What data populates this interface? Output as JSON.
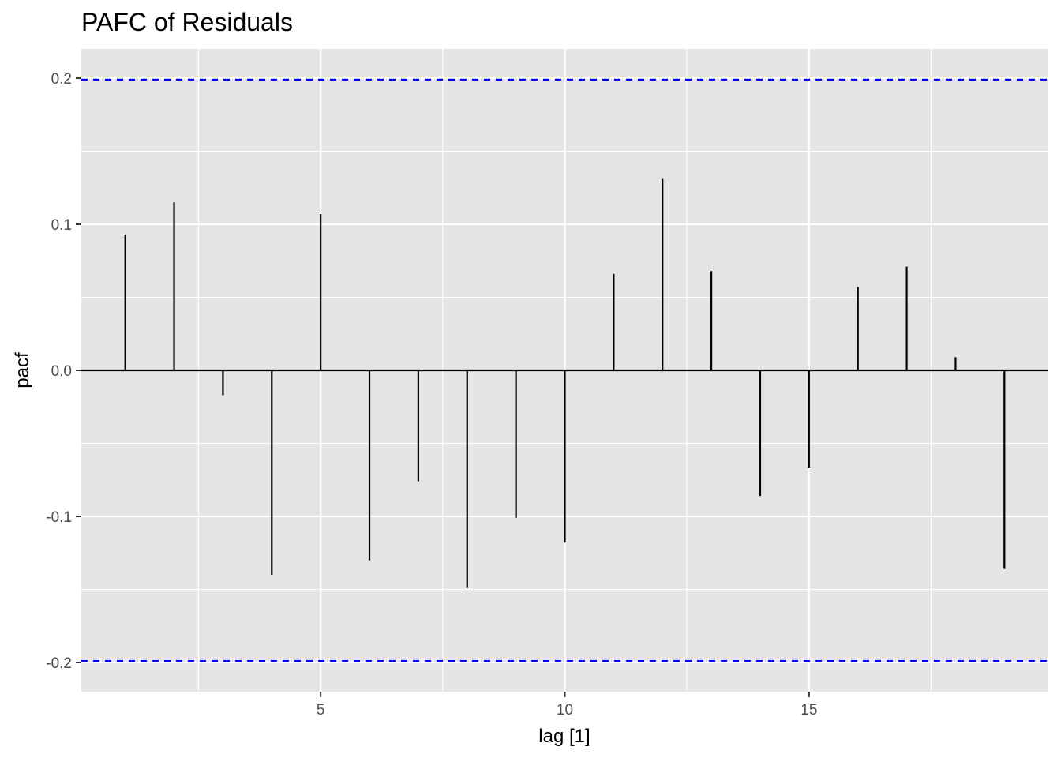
{
  "chart_data": {
    "type": "bar",
    "title": "PAFC of  Residuals",
    "xlabel": "lag [1]",
    "ylabel": "pacf",
    "x": [
      1,
      2,
      3,
      4,
      5,
      6,
      7,
      8,
      9,
      10,
      11,
      12,
      13,
      14,
      15,
      16,
      17,
      18,
      19
    ],
    "values": [
      0.093,
      0.115,
      -0.017,
      -0.14,
      0.107,
      -0.13,
      -0.076,
      -0.149,
      -0.101,
      -0.118,
      0.066,
      0.131,
      0.068,
      -0.086,
      -0.067,
      0.057,
      0.071,
      0.009,
      -0.136
    ],
    "xlim": [
      0.1,
      19.9
    ],
    "ylim": [
      -0.22,
      0.22
    ],
    "x_ticks": [
      5,
      10,
      15
    ],
    "x_tick_labels": [
      "5",
      "10",
      "15"
    ],
    "x_minor_ticks": [
      2.5,
      7.5,
      12.5,
      17.5
    ],
    "y_ticks": [
      -0.2,
      -0.1,
      0.0,
      0.1,
      0.2
    ],
    "y_tick_labels": [
      "-0.2",
      "-0.1",
      "0.0",
      "0.1",
      "0.2"
    ],
    "y_minor_ticks": [
      -0.15,
      -0.05,
      0.05,
      0.15
    ],
    "significance_bounds": [
      -0.199,
      0.199
    ],
    "grid": true,
    "colors": {
      "panel": "#e5e5e5",
      "grid": "#ffffff",
      "bar": "#000000",
      "bound": "#0000ff",
      "tick_text": "#4d4d4d"
    }
  }
}
